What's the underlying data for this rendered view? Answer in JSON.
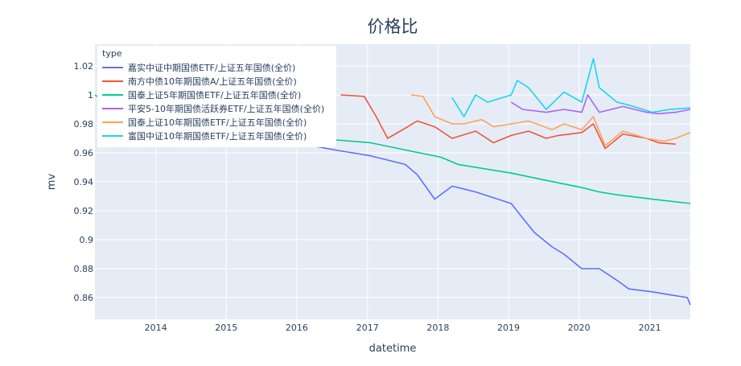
{
  "chart_data": {
    "type": "line",
    "title": "价格比",
    "xlabel": "datetime",
    "ylabel": "mv",
    "legend_title": "type",
    "legend_placement": "top-left",
    "grid": true,
    "xlim": [
      "2013-02-20",
      "2021-07-30"
    ],
    "ylim": [
      0.845,
      1.035
    ],
    "x_ticks": [
      "2014",
      "2015",
      "2016",
      "2017",
      "2018",
      "2019",
      "2020",
      "2021"
    ],
    "y_ticks": [
      0.86,
      0.88,
      0.9,
      0.92,
      0.94,
      0.96,
      0.98,
      1,
      1.02
    ],
    "y_tick_labels": [
      "0.86",
      "0.88",
      "0.9",
      "0.92",
      "0.94",
      "0.96",
      "0.98",
      "1",
      "1.02"
    ],
    "colors": {
      "background": "#e5ecf6",
      "grid": "#ffffff",
      "text": "#2a3f5f"
    },
    "series": [
      {
        "name": "嘉实中证中期国债ETF/上证五年国债(全价)",
        "color": "#636efa",
        "x": [
          "2016-03",
          "2016-07",
          "2017-01",
          "2017-07",
          "2017-09",
          "2017-12",
          "2018-03",
          "2018-07",
          "2019-01",
          "2019-03",
          "2019-05",
          "2019-08",
          "2019-10",
          "2020-01",
          "2020-04",
          "2020-07",
          "2020-09",
          "2021-01",
          "2021-04",
          "2021-07",
          "2021-07-30"
        ],
        "y": [
          0.965,
          0.962,
          0.958,
          0.952,
          0.945,
          0.928,
          0.937,
          0.933,
          0.925,
          0.915,
          0.905,
          0.895,
          0.89,
          0.88,
          0.88,
          0.872,
          0.866,
          0.864,
          0.862,
          0.86,
          0.855
        ]
      },
      {
        "name": "南方中债10年期国债A/上证五年国债(全价)",
        "color": "#EF553B",
        "x": [
          "2016-08",
          "2016-12",
          "2017-02",
          "2017-04",
          "2017-07",
          "2017-09",
          "2017-12",
          "2018-03",
          "2018-07",
          "2018-10",
          "2019-01",
          "2019-04",
          "2019-07",
          "2019-09",
          "2020-01",
          "2020-03",
          "2020-05",
          "2020-08",
          "2020-12",
          "2021-02",
          "2021-05"
        ],
        "y": [
          1.0,
          0.999,
          0.985,
          0.97,
          0.977,
          0.982,
          0.978,
          0.97,
          0.975,
          0.967,
          0.972,
          0.975,
          0.97,
          0.972,
          0.974,
          0.98,
          0.963,
          0.973,
          0.97,
          0.967,
          0.966
        ]
      },
      {
        "name": "国泰上证5年期国债ETF/上证五年国债(全价)",
        "color": "#00cc96",
        "x": [
          "2013-02-20",
          "2013-03",
          "2016-04",
          "2017-01",
          "2017-07",
          "2018-01",
          "2018-04",
          "2019-01",
          "2019-07",
          "2020-01",
          "2020-04",
          "2020-07",
          "2021-01",
          "2021-07-30"
        ],
        "y": [
          1.0,
          0.998,
          0.97,
          0.967,
          0.962,
          0.957,
          0.952,
          0.946,
          0.941,
          0.936,
          0.933,
          0.931,
          0.928,
          0.925
        ]
      },
      {
        "name": "平安5-10年期国债活跃券ETF/上证五年国债(全价)",
        "color": "#ab63fa",
        "x": [
          "2019-01",
          "2019-03",
          "2019-07",
          "2019-10",
          "2020-01",
          "2020-02",
          "2020-04",
          "2020-08",
          "2020-12",
          "2021-02",
          "2021-05",
          "2021-07-30"
        ],
        "y": [
          0.995,
          0.99,
          0.988,
          0.99,
          0.988,
          1.0,
          0.988,
          0.992,
          0.988,
          0.987,
          0.988,
          0.99
        ]
      },
      {
        "name": "国泰上证10年期国债ETF/上证五年国债(全价)",
        "color": "#FFA15A",
        "x": [
          "2017-08",
          "2017-10",
          "2017-12",
          "2018-03",
          "2018-05",
          "2018-08",
          "2018-10",
          "2019-01",
          "2019-04",
          "2019-08",
          "2019-10",
          "2020-01",
          "2020-03",
          "2020-05",
          "2020-08",
          "2020-12",
          "2021-03",
          "2021-05",
          "2021-07-30"
        ],
        "y": [
          1.0,
          0.999,
          0.985,
          0.98,
          0.98,
          0.983,
          0.978,
          0.98,
          0.982,
          0.976,
          0.98,
          0.976,
          0.985,
          0.965,
          0.975,
          0.97,
          0.968,
          0.97,
          0.974
        ]
      },
      {
        "name": "富国中证10年期国债ETF/上证五年国债(全价)",
        "color": "#19d3f3",
        "x": [
          "2018-03",
          "2018-05",
          "2018-07",
          "2018-09",
          "2019-01",
          "2019-02",
          "2019-04",
          "2019-07",
          "2019-10",
          "2020-01",
          "2020-03",
          "2020-04",
          "2020-07",
          "2020-09",
          "2021-01",
          "2021-04",
          "2021-07-30"
        ],
        "y": [
          0.998,
          0.985,
          1.0,
          0.995,
          1.0,
          1.01,
          1.005,
          0.99,
          1.002,
          0.995,
          1.025,
          1.005,
          0.995,
          0.993,
          0.988,
          0.99,
          0.991
        ]
      }
    ]
  }
}
